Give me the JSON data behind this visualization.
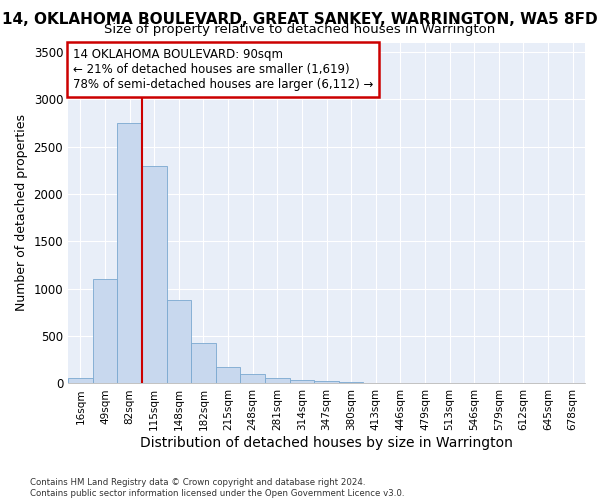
{
  "title": "14, OKLAHOMA BOULEVARD, GREAT SANKEY, WARRINGTON, WA5 8FD",
  "subtitle": "Size of property relative to detached houses in Warrington",
  "xlabel": "Distribution of detached houses by size in Warrington",
  "ylabel": "Number of detached properties",
  "categories": [
    "16sqm",
    "49sqm",
    "82sqm",
    "115sqm",
    "148sqm",
    "182sqm",
    "215sqm",
    "248sqm",
    "281sqm",
    "314sqm",
    "347sqm",
    "380sqm",
    "413sqm",
    "446sqm",
    "479sqm",
    "513sqm",
    "546sqm",
    "579sqm",
    "612sqm",
    "645sqm",
    "678sqm"
  ],
  "values": [
    55,
    1100,
    2750,
    2300,
    880,
    430,
    175,
    95,
    55,
    40,
    30,
    20,
    10,
    5,
    2,
    1,
    0,
    0,
    0,
    0,
    0
  ],
  "bar_color": "#c8d8ee",
  "bar_edge_color": "#7aa8d0",
  "red_line_x": 2.5,
  "red_line_color": "#cc0000",
  "annotation_line1": "14 OKLAHOMA BOULEVARD: 90sqm",
  "annotation_line2": "← 21% of detached houses are smaller (1,619)",
  "annotation_line3": "78% of semi-detached houses are larger (6,112) →",
  "annotation_box_color": "#ffffff",
  "annotation_box_edge": "#cc0000",
  "ylim": [
    0,
    3600
  ],
  "yticks": [
    0,
    500,
    1000,
    1500,
    2000,
    2500,
    3000,
    3500
  ],
  "title_fontsize": 11,
  "xlabel_fontsize": 10,
  "ylabel_fontsize": 9,
  "footnote": "Contains HM Land Registry data © Crown copyright and database right 2024.\nContains public sector information licensed under the Open Government Licence v3.0.",
  "background_color": "#ffffff",
  "axes_background": "#e8eef8",
  "grid_color": "#ffffff"
}
